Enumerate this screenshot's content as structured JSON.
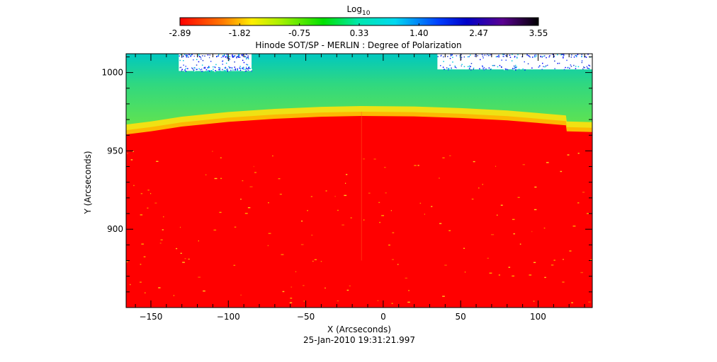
{
  "chart_data": {
    "type": "heatmap",
    "title": "Hinode SOT/SP - MERLIN : Degree of Polarization",
    "colorbar": {
      "label": "Log",
      "label_subscript": "10",
      "ticks": [
        "-2.89",
        "-1.82",
        "-0.75",
        "0.33",
        "1.40",
        "2.47",
        "3.55"
      ],
      "range": [
        -2.89,
        3.55
      ],
      "colormap": [
        "#ff0000",
        "#ffee00",
        "#00e000",
        "#00e8e8",
        "#0000ff",
        "#4b0082",
        "#000000"
      ]
    },
    "xlabel": "X (Arcseconds)",
    "ylabel": "Y (Arcseconds)",
    "x_ticks": [
      -150,
      -100,
      -50,
      0,
      50,
      100
    ],
    "y_ticks": [
      900,
      950,
      1000
    ],
    "xlim": [
      -166,
      135
    ],
    "ylim": [
      850,
      1012
    ],
    "limb_profile": {
      "x": [
        -166,
        -150,
        -130,
        -100,
        -70,
        -40,
        -14,
        20,
        50,
        80,
        100,
        118,
        118.5,
        135
      ],
      "y": [
        960.5,
        962.5,
        965.5,
        968.5,
        970.5,
        971.8,
        972.3,
        972.0,
        971.0,
        969.5,
        967.8,
        966.3,
        962.5,
        962.0
      ]
    },
    "timestamp": "25-Jan-2010 19:31:21.997"
  }
}
